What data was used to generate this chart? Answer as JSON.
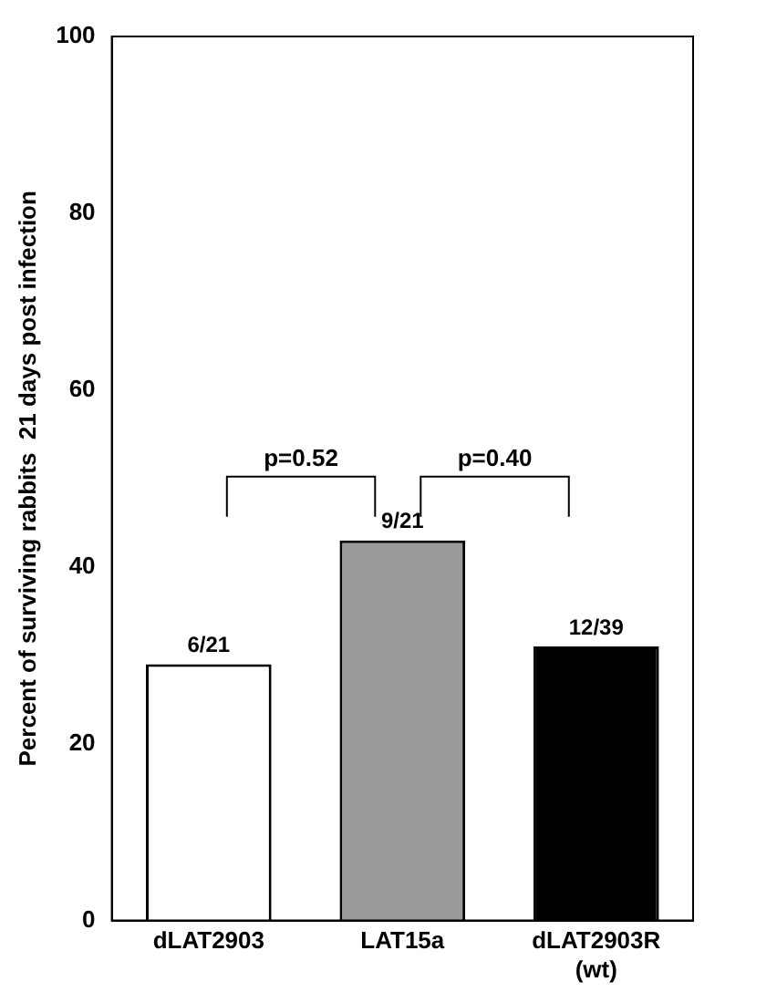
{
  "chart_data": {
    "type": "bar",
    "ylabel": "Percent of surviving rabbits  21 days post infection",
    "categories": [
      "dLAT2903",
      "LAT15a",
      "dLAT2903R\n(wt)"
    ],
    "values": [
      29,
      43,
      31
    ],
    "colors": [
      "#ffffff",
      "#9a9a9a",
      "#000000"
    ],
    "value_labels": [
      "6/21",
      "9/21",
      "12/39"
    ],
    "ylim": [
      0,
      100
    ],
    "yticks": [
      0,
      20,
      40,
      60,
      80,
      100
    ],
    "grid": false,
    "legend": false,
    "annotations": [
      "p=0.52",
      "p=0.40"
    ]
  }
}
